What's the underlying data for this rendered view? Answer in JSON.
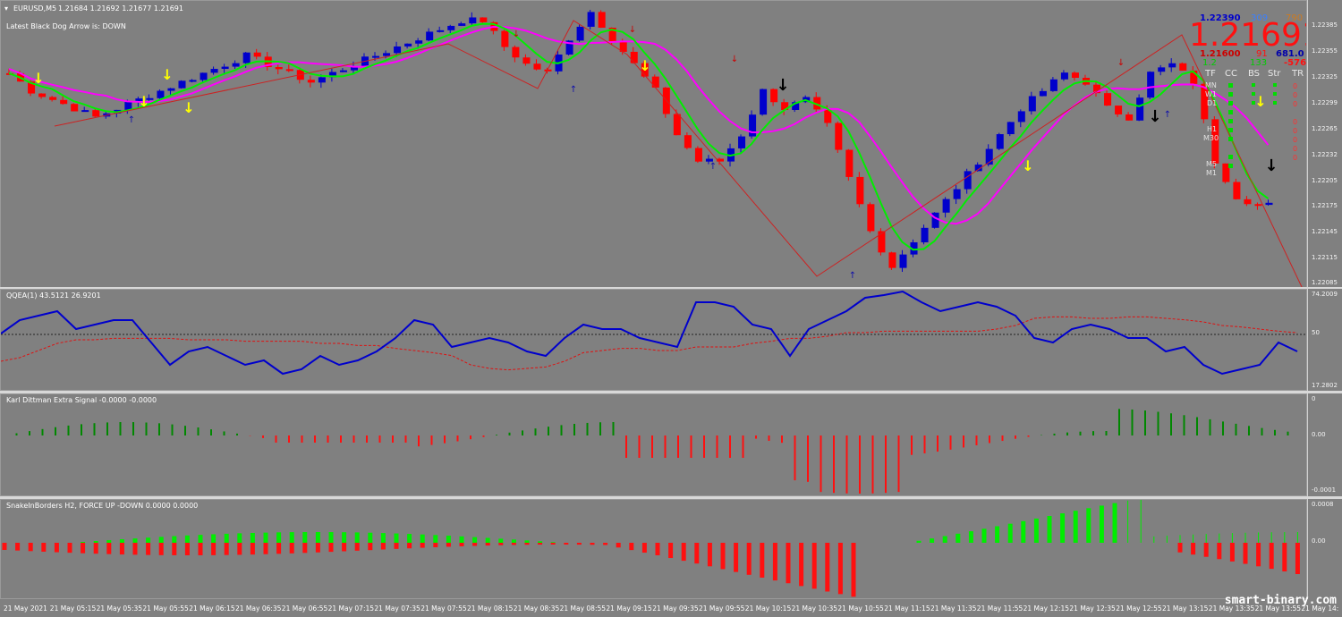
{
  "main": {
    "symbol_label": "EURUSD,M5",
    "ohlc": "1.21684 1.21692 1.21677 1.21691",
    "indicator_note": "Latest Black Dog Arrow is:  DOWN",
    "price_ticks": [
      "1.22385",
      "1.22355",
      "1.22325",
      "1.22299",
      "1.22265",
      "1.22232",
      "1.22205",
      "1.22175",
      "1.22145",
      "1.22115",
      "1.22085"
    ],
    "big_price": "1.21691",
    "top_left": "1.22390",
    "top_mid": "309",
    "top_right": "790",
    "row2_left": "1.21600",
    "row2_mid": "91",
    "row2_right": "681.0",
    "row3_left": "1.2",
    "row3_mid": "133",
    "row3_right": "-576",
    "table_headers": [
      "TF",
      "CC",
      "BS",
      "Str",
      "TR"
    ],
    "timeframes": [
      "MN",
      "W1",
      "D1",
      "H4",
      "H1",
      "M30",
      "M15",
      "M5",
      "M1"
    ],
    "trend_values": [
      "0",
      "0",
      "0",
      "0",
      "0",
      "0",
      "0",
      "0",
      "0"
    ],
    "colors": {
      "bull": "#0000cc",
      "bear": "#ff0000",
      "green_ma": "#00ee00",
      "magenta_ma": "#ff00ff",
      "zigzag": "#cc2222",
      "arrow_yellow": "#ffff00",
      "arrow_black": "#000000"
    }
  },
  "qqea": {
    "label": "QQEA(1) 43.5121 26.9201",
    "ticks": [
      "74.2009",
      "50",
      "17.2802"
    ]
  },
  "karl": {
    "label": "Karl Dittman Extra Signal -0.0000 -0.0000",
    "ticks": [
      "0",
      "0.00",
      "-0.0001"
    ]
  },
  "snake": {
    "label": "SnakeInBorders H2, FORCE UP -DOWN  0.0000 0.0000",
    "ticks": [
      "0.0008",
      "0.00"
    ]
  },
  "time_labels": [
    "21 May 2021",
    "21 May 05:15",
    "21 May 05:35",
    "21 May 05:55",
    "21 May 06:15",
    "21 May 06:35",
    "21 May 06:55",
    "21 May 07:15",
    "21 May 07:35",
    "21 May 07:55",
    "21 May 08:15",
    "21 May 08:35",
    "21 May 08:55",
    "21 May 09:15",
    "21 May 09:35",
    "21 May 09:55",
    "21 May 10:15",
    "21 May 10:35",
    "21 May 10:55",
    "21 May 11:15",
    "21 May 11:35",
    "21 May 11:55",
    "21 May 12:15",
    "21 May 12:35",
    "21 May 12:55",
    "21 May 13:15",
    "21 May 13:35",
    "21 May 13:55",
    "21 May 14:"
  ],
  "watermark": "smart-binary.com",
  "chart_data": {
    "type": "candlestick",
    "symbol": "EURUSD",
    "timeframe": "M5",
    "close": [
      1.2232,
      1.223,
      1.2229,
      1.2228,
      1.2227,
      1.2228,
      1.2229,
      1.223,
      1.2231,
      1.2232,
      1.2233,
      1.2234,
      1.2233,
      1.2232,
      1.2231,
      1.2232,
      1.2233,
      1.2234,
      1.2235,
      1.2236,
      1.2237,
      1.2238,
      1.2238,
      1.2235,
      1.2233,
      1.2232,
      1.2236,
      1.2239,
      1.2236,
      1.2233,
      1.223,
      1.2225,
      1.2222,
      1.2222,
      1.2225,
      1.223,
      1.2228,
      1.2229,
      1.2226,
      1.222,
      1.2214,
      1.221,
      1.2213,
      1.2216,
      1.2219,
      1.2222,
      1.2225,
      1.2228,
      1.223,
      1.2232,
      1.2231,
      1.2228,
      1.2227,
      1.2232,
      1.2233,
      1.2231,
      1.2222,
      1.2218,
      1.2217
    ]
  }
}
